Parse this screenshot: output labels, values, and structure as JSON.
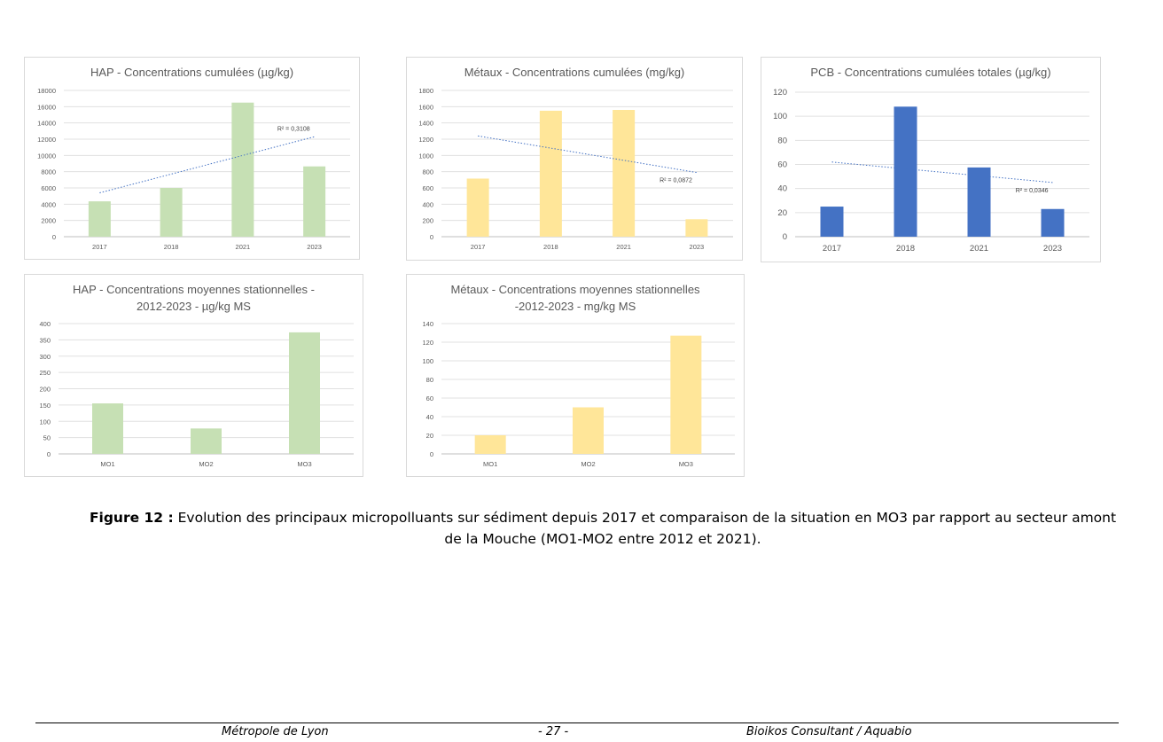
{
  "chart_data": [
    {
      "type": "bar",
      "title": "HAP - Concentrations cumulées (µg/kg)",
      "categories": [
        "2017",
        "2018",
        "2021",
        "2023"
      ],
      "series": [
        {
          "values": [
            4350,
            6000,
            16500,
            8650
          ]
        }
      ],
      "ylim": [
        0,
        18000
      ],
      "yticks": [
        0,
        2000,
        4000,
        6000,
        8000,
        10000,
        12000,
        14000,
        16000,
        18000
      ],
      "bar_color": "#c6e0b4",
      "trendline": {
        "start": 5400,
        "end": 12300,
        "label": "R² = 0,3108"
      },
      "grid": true
    },
    {
      "type": "bar",
      "title": "Métaux - Concentrations cumulées (mg/kg)",
      "categories": [
        "2017",
        "2018",
        "2021",
        "2023"
      ],
      "series": [
        {
          "values": [
            715,
            1550,
            1560,
            215
          ]
        }
      ],
      "ylim": [
        0,
        1800
      ],
      "yticks": [
        0,
        200,
        400,
        600,
        800,
        1000,
        1200,
        1400,
        1600,
        1800
      ],
      "bar_color": "#ffe699",
      "trendline": {
        "start": 1240,
        "end": 790,
        "label": "R² = 0,0872"
      },
      "grid": true
    },
    {
      "type": "bar",
      "title": "PCB - Concentrations cumulées totales (µg/kg)",
      "categories": [
        "2017",
        "2018",
        "2021",
        "2023"
      ],
      "series": [
        {
          "values": [
            25,
            108,
            57.5,
            23
          ]
        }
      ],
      "ylim": [
        0,
        120
      ],
      "yticks": [
        0,
        20,
        40,
        60,
        80,
        100,
        120
      ],
      "bar_color": "#4472c4",
      "trendline": {
        "start": 62,
        "end": 45,
        "label": "R² = 0,0346"
      },
      "grid": true
    },
    {
      "type": "bar",
      "title": "HAP - Concentrations moyennes stationnelles - 2012-2023 - µg/kg MS",
      "title_lines": [
        "HAP - Concentrations moyennes stationnelles -",
        "2012-2023 - µg/kg MS"
      ],
      "categories": [
        "MO1",
        "MO2",
        "MO3"
      ],
      "series": [
        {
          "values": [
            155,
            78,
            373
          ]
        }
      ],
      "ylim": [
        0,
        400
      ],
      "yticks": [
        0,
        50,
        100,
        150,
        200,
        250,
        300,
        350,
        400
      ],
      "bar_color": "#c6e0b4",
      "grid": true
    },
    {
      "type": "bar",
      "title": "Métaux - Concentrations moyennes stationnelles -2012-2023 - mg/kg MS",
      "title_lines": [
        "Métaux - Concentrations moyennes stationnelles",
        "-2012-2023 - mg/kg MS"
      ],
      "categories": [
        "MO1",
        "MO2",
        "MO3"
      ],
      "series": [
        {
          "values": [
            20,
            50,
            127
          ]
        }
      ],
      "ylim": [
        0,
        140
      ],
      "yticks": [
        0,
        20,
        40,
        60,
        80,
        100,
        120,
        140
      ],
      "bar_color": "#ffe699",
      "grid": true
    }
  ],
  "caption": {
    "label": "Figure 12 :",
    "text": " Evolution des principaux micropolluants sur sédiment depuis 2017 et comparaison de la situation en MO3 par rapport au secteur amont de la Mouche (MO1-MO2 entre 2012 et 2021)."
  },
  "footer": {
    "left": "Métropole de Lyon",
    "center": "- 27 -",
    "right": "Bioikos Consultant / Aquabio"
  }
}
